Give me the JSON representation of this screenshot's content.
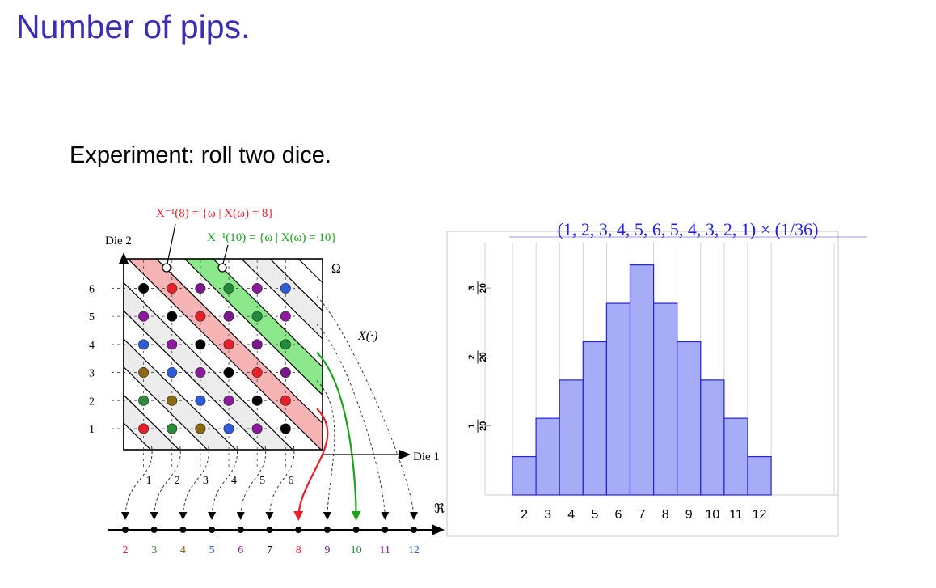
{
  "slide": {
    "title": "Number of pips.",
    "subtitle": "Experiment: roll two dice."
  },
  "diagram": {
    "die2_label": "Die 2",
    "die1_label": "Die 1",
    "omega_label": "Ω",
    "x_func_label": "X(·)",
    "reals_label": "ℜ",
    "preimage_8_label": "X⁻¹(8) = {ω | X(ω) = 8}",
    "preimage_10_label": "X⁻¹(10) = {ω | X(ω) = 10}",
    "y_ticks": [
      "1",
      "2",
      "3",
      "4",
      "5",
      "6"
    ],
    "x_ticks": [
      "1",
      "2",
      "3",
      "4",
      "5",
      "6"
    ],
    "sum_values": [
      "2",
      "3",
      "4",
      "5",
      "6",
      "7",
      "8",
      "9",
      "10",
      "11",
      "12"
    ],
    "sum_colors": [
      "#e8202a",
      "#2e8b3a",
      "#8b6914",
      "#2f5bd8",
      "#8b1a9c",
      "#000000",
      "#e8202a",
      "#7a1a8a",
      "#1f8a3a",
      "#8b1a9c",
      "#2f5bd8"
    ],
    "highlight_colors": {
      "preimage_8": "#f6b4b4",
      "preimage_10": "#8be88b",
      "arrow_8": "#e8202a",
      "arrow_10": "#1aa31a"
    }
  },
  "chart_data": {
    "type": "bar",
    "title": "(1, 2, 3, 4, 5, 6, 5, 4, 3, 2, 1) × (1/36)",
    "categories": [
      "2",
      "3",
      "4",
      "5",
      "6",
      "7",
      "8",
      "9",
      "10",
      "11",
      "12"
    ],
    "values": [
      0.0278,
      0.0556,
      0.0833,
      0.1111,
      0.1389,
      0.1667,
      0.1389,
      0.1111,
      0.0833,
      0.0556,
      0.0278
    ],
    "y_ticks": [
      {
        "num": "1",
        "den": "20",
        "value": 0.05
      },
      {
        "num": "2",
        "den": "20",
        "value": 0.1
      },
      {
        "num": "3",
        "den": "20",
        "value": 0.15
      }
    ],
    "ylim": [
      0,
      0.17
    ],
    "grid": true,
    "bar_color": "#a6acf5",
    "bar_edge": "#2222dd",
    "title_color": "#2222dd"
  }
}
